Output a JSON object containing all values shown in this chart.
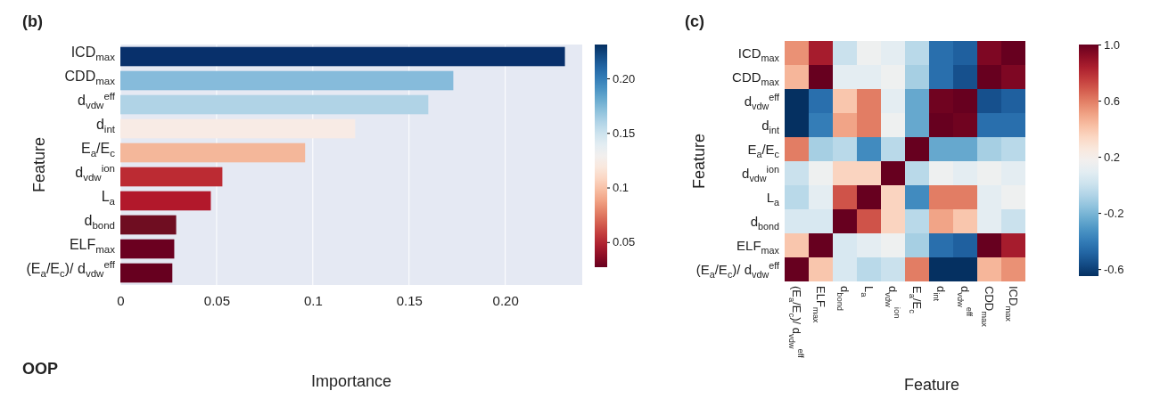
{
  "chart_data": [
    {
      "type": "bar",
      "orientation": "horizontal",
      "title": "(b)",
      "xlabel": "Importance",
      "ylabel": "Feature",
      "annotations": [
        "OOP"
      ],
      "categories": [
        "ICD$_{max}$",
        "CDD$_{max}$",
        "d$_{vdw}$$^{eff}$",
        "d$_{int}$",
        "E$_{a}$/E$_{c}$",
        "d$_{vdw}$$^{ion}$",
        "L$_{a}$",
        "d$_{bond}$",
        "ELF$_{max}$",
        "(E$_{a}$/E$_{c}$)/ d$_{vdw}$$^{eff}$"
      ],
      "values": [
        0.231,
        0.173,
        0.16,
        0.122,
        0.096,
        0.053,
        0.047,
        0.029,
        0.028,
        0.027
      ],
      "colors": [
        "#08306b",
        "#86bbdb",
        "#b0d3e6",
        "#f8ebe5",
        "#f4b79a",
        "#bc2b33",
        "#b2182b",
        "#6f0d21",
        "#6b0020",
        "#67001f"
      ],
      "xlim": [
        0,
        0.24
      ],
      "xticks": [
        0,
        0.05,
        0.1,
        0.15,
        {
          "value": 0.2,
          "label": "0.20"
        }
      ],
      "grid": "x",
      "clim": [
        0.027,
        0.231
      ],
      "cticks": [
        0.05,
        0.1,
        0.15,
        {
          "value": 0.2,
          "label": "0.20"
        }
      ]
    },
    {
      "type": "heatmap",
      "title": "(c)",
      "xlabel": "Feature",
      "ylabel": "Feature",
      "categories": [
        "(E$_{a}$/E$_{c}$)/ d$_{vdw}$$^{eff}$",
        "ELF$_{max}$",
        "d$_{bond}$",
        "L$_{a}$",
        "d$_{vdw}$$^{ion}$",
        "E$_{a}$/E$_{c}$",
        "d$_{int}$",
        "d$_{vdw}$$^{eff}$",
        "CDD$_{max}$",
        "ICD$_{max}$"
      ],
      "y_categories": [
        "ICD$_{max}$",
        "CDD$_{max}$",
        "d$_{vdw}$$^{eff}$",
        "d$_{int}$",
        "E$_{a}$/E$_{c}$",
        "d$_{vdw}$$^{ion}$",
        "L$_{a}$",
        "d$_{bond}$",
        "ELF$_{max}$",
        "(E$_{a}$/E$_{c}$)/ d$_{vdw}$$^{eff}$"
      ],
      "cells": [
        [
          0.55,
          0.85,
          0.0,
          0.15,
          0.1,
          -0.05,
          -0.45,
          -0.5,
          0.95,
          1.0
        ],
        [
          0.45,
          1.0,
          0.1,
          0.1,
          0.15,
          -0.1,
          -0.45,
          -0.55,
          1.0,
          0.95
        ],
        [
          -0.65,
          -0.45,
          0.4,
          0.6,
          0.1,
          -0.25,
          0.98,
          1.0,
          -0.55,
          -0.5
        ],
        [
          -0.65,
          -0.4,
          0.5,
          0.6,
          0.15,
          -0.25,
          1.0,
          0.98,
          -0.45,
          -0.45
        ],
        [
          0.6,
          -0.1,
          -0.05,
          -0.35,
          -0.05,
          1.0,
          -0.25,
          -0.25,
          -0.1,
          -0.05
        ],
        [
          0.0,
          0.15,
          0.35,
          0.35,
          1.0,
          -0.05,
          0.15,
          0.1,
          0.15,
          0.1
        ],
        [
          -0.05,
          0.1,
          0.7,
          1.0,
          0.35,
          -0.35,
          0.6,
          0.6,
          0.1,
          0.15
        ],
        [
          0.05,
          0.05,
          1.0,
          0.7,
          0.35,
          -0.05,
          0.5,
          0.4,
          0.1,
          0.0
        ],
        [
          0.4,
          1.0,
          0.05,
          0.1,
          0.15,
          -0.1,
          -0.45,
          -0.5,
          1.0,
          0.85
        ],
        [
          1.0,
          0.4,
          0.05,
          -0.05,
          0.0,
          0.6,
          -0.65,
          -0.65,
          0.45,
          0.55
        ]
      ],
      "clim": [
        -0.65,
        1.0
      ],
      "cticks": [
        -0.6,
        -0.2,
        0.2,
        0.6,
        {
          "value": 1.0,
          "label": "1.0"
        }
      ]
    }
  ]
}
